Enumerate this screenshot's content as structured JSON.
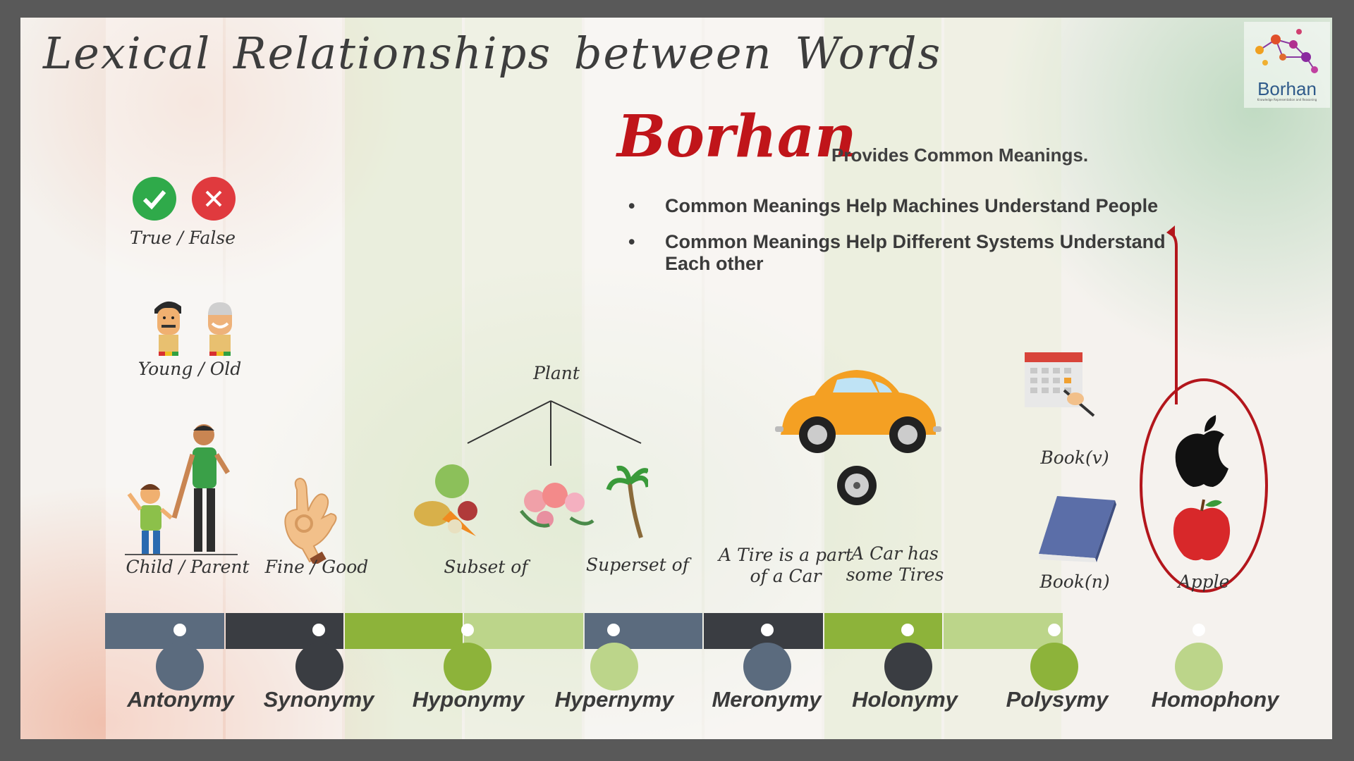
{
  "slide": {
    "title": "Lexical Relationships between Words",
    "logo": {
      "name": "Borhan",
      "subtitle": "Knowledge Representation and Reasoning"
    },
    "brand": {
      "name": "Borhan",
      "tagline": "Provides Common Meanings."
    },
    "bullets": [
      "Common Meanings Help Machines Understand People",
      "Common Meanings Help Different Systems Understand Each other"
    ],
    "examples": {
      "antonymy": [
        "True / False",
        "Young / Old",
        "Child / Parent"
      ],
      "synonymy": "Fine / Good",
      "hyponymy": "Subset of",
      "hypernymy": "Superset of",
      "plant_root": "Plant",
      "meronymy": "A Tire is a part of a Car",
      "holonymy": "A Car has some Tires",
      "polysemy": [
        "Book(v)",
        "Book(n)"
      ],
      "homophony": "Apple"
    },
    "relations": [
      "Antonymy",
      "Synonymy",
      "Hyponymy",
      "Hypernymy",
      "Meronymy",
      "Holonymy",
      "Polysymy",
      "Homophony"
    ],
    "colors": {
      "slate": "#5b6b7e",
      "dark": "#3a3d42",
      "green": "#8db33a",
      "light_green": "#bcd58a",
      "accent_red": "#b3161c",
      "frame": "#595959"
    },
    "icons": [
      "check-icon",
      "cross-icon",
      "young-face-icon",
      "old-face-icon",
      "child-icon",
      "parent-icon",
      "ok-hand-icon",
      "vegetables-icon",
      "flowers-icon",
      "palm-tree-icon",
      "car-icon",
      "tire-icon",
      "calendar-icon",
      "book-icon",
      "apple-logo-icon",
      "red-apple-icon"
    ]
  }
}
